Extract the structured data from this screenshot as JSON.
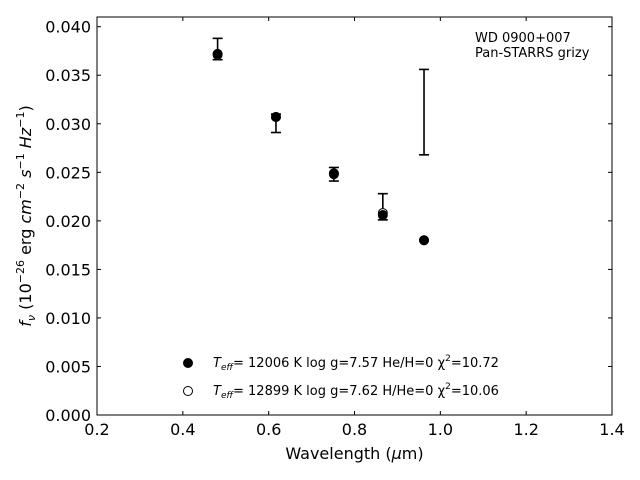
{
  "chart_data": {
    "type": "scatter",
    "xlabel": "Wavelength (μm)",
    "ylabel": "f_ν (10^-26 erg cm^-2 s^-1 Hz^-1)",
    "xlim": [
      0.2,
      1.4
    ],
    "ylim": [
      0.0,
      0.041
    ],
    "xticks": [
      "0.2",
      "0.4",
      "0.6",
      "0.8",
      "1.0",
      "1.2",
      "1.4"
    ],
    "yticks": [
      "0.000",
      "0.005",
      "0.010",
      "0.015",
      "0.020",
      "0.025",
      "0.030",
      "0.035",
      "0.040"
    ],
    "annotation": [
      "WD 0900+007",
      "Pan-STARRS grizy"
    ],
    "grid": false,
    "legend_position": "lower-center",
    "observed": {
      "x": [
        0.481,
        0.617,
        0.752,
        0.866,
        0.962
      ],
      "y_low": [
        0.0366,
        0.0291,
        0.0241,
        0.0201,
        0.0268
      ],
      "y_high": [
        0.0388,
        0.031,
        0.0255,
        0.0228,
        0.0356
      ]
    },
    "series": [
      {
        "legend": {
          "teff": "T",
          "teff_sub": "eff",
          "text": "= 12006 K  log g=7.57  He/H=0  χ",
          "chi_sup": "2",
          "chi_val": "=10.72"
        },
        "marker": "filled-circle",
        "x": [
          0.481,
          0.617,
          0.752,
          0.866,
          0.962
        ],
        "y": [
          0.0372,
          0.0307,
          0.0249,
          0.0206,
          0.018
        ]
      },
      {
        "legend": {
          "teff": "T",
          "teff_sub": "eff",
          "text": "= 12899 K  log g=7.62  H/He=0  χ",
          "chi_sup": "2",
          "chi_val": "=10.06"
        },
        "marker": "open-circle",
        "x": [
          0.481,
          0.617,
          0.752,
          0.866,
          0.962
        ],
        "y": [
          0.0371,
          0.0307,
          0.0248,
          0.0208,
          0.018
        ]
      }
    ]
  }
}
